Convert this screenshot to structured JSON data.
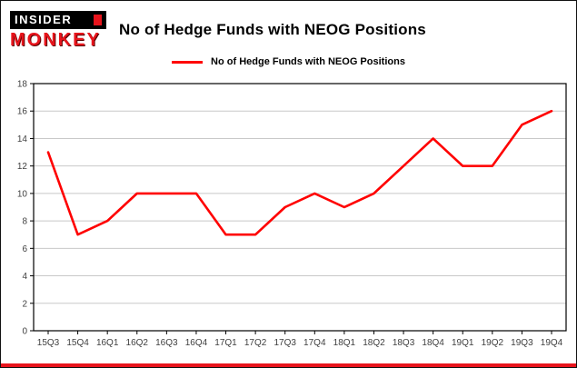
{
  "logo": {
    "top_text": "INSIDER",
    "bottom_text": "MONKEY"
  },
  "header": {
    "title": "No of Hedge Funds with NEOG Positions"
  },
  "legend": {
    "label": "No of Hedge Funds with NEOG Positions"
  },
  "colors": {
    "accent": "#ff0000",
    "brand_red": "#e8141c",
    "grid": "#c8c8c8",
    "axis": "#000000",
    "tick_label": "#404040",
    "background": "#ffffff"
  },
  "chart_data": {
    "type": "line",
    "title": "No of Hedge Funds with NEOG Positions",
    "categories": [
      "15Q3",
      "15Q4",
      "16Q1",
      "16Q2",
      "16Q3",
      "16Q4",
      "17Q1",
      "17Q2",
      "17Q3",
      "17Q4",
      "18Q1",
      "18Q2",
      "18Q3",
      "18Q4",
      "19Q1",
      "19Q2",
      "19Q3",
      "19Q4"
    ],
    "values": [
      13,
      7,
      8,
      10,
      10,
      10,
      7,
      7,
      9,
      10,
      9,
      10,
      12,
      14,
      12,
      12,
      15,
      16
    ],
    "series": [
      {
        "name": "No of Hedge Funds with NEOG Positions",
        "color": "#ff0000",
        "values": [
          13,
          7,
          8,
          10,
          10,
          10,
          7,
          7,
          9,
          10,
          9,
          10,
          12,
          14,
          12,
          12,
          15,
          16
        ]
      }
    ],
    "xlabel": "",
    "ylabel": "",
    "ylim": [
      0,
      18
    ],
    "yticks": [
      0,
      2,
      4,
      6,
      8,
      10,
      12,
      14,
      16,
      18
    ],
    "grid": true,
    "legend_position": "top"
  }
}
